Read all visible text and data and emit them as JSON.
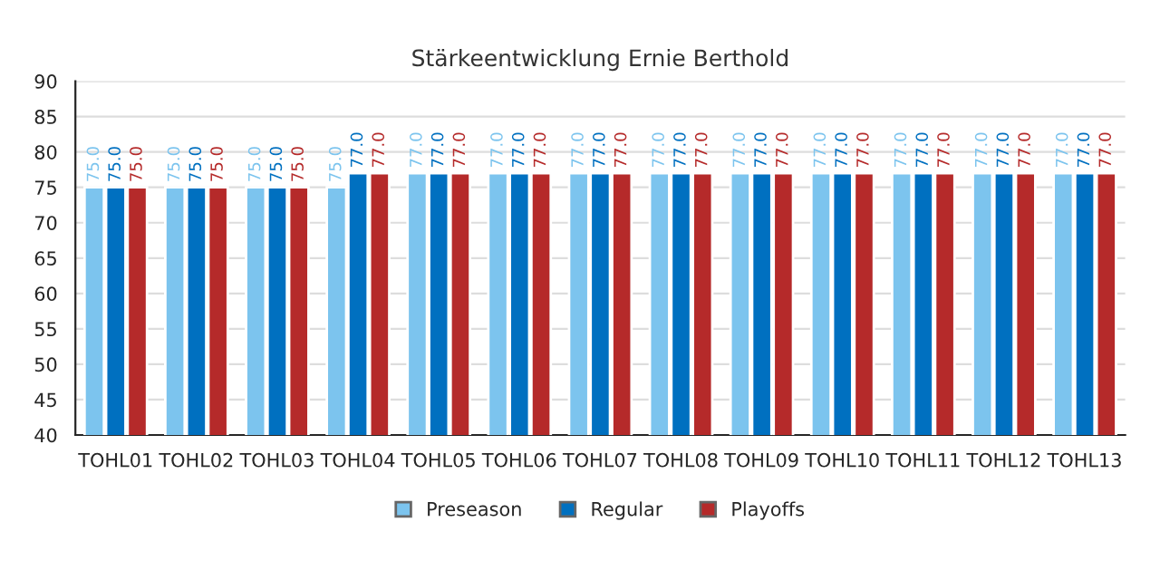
{
  "chart_data": {
    "type": "bar",
    "title": "Stärkeentwicklung Ernie Berthold",
    "categories": [
      "TOHL01",
      "TOHL02",
      "TOHL03",
      "TOHL04",
      "TOHL05",
      "TOHL06",
      "TOHL07",
      "TOHL08",
      "TOHL09",
      "TOHL10",
      "TOHL11",
      "TOHL12",
      "TOHL13"
    ],
    "series": [
      {
        "name": "Preseason",
        "color": "#7cc4ee",
        "values": [
          75,
          75,
          75,
          75,
          77,
          77,
          77,
          77,
          77,
          77,
          77,
          77,
          77
        ],
        "value_labels": [
          "75.0",
          "75.0",
          "75.0",
          "75.0",
          "77.0",
          "77.0",
          "77.0",
          "77.0",
          "77.0",
          "77.0",
          "77.0",
          "77.0",
          "77.0"
        ]
      },
      {
        "name": "Regular",
        "color": "#0070c0",
        "values": [
          75,
          75,
          75,
          77,
          77,
          77,
          77,
          77,
          77,
          77,
          77,
          77,
          77
        ],
        "value_labels": [
          "75.0",
          "75.0",
          "75.0",
          "77.0",
          "77.0",
          "77.0",
          "77.0",
          "77.0",
          "77.0",
          "77.0",
          "77.0",
          "77.0",
          "77.0"
        ]
      },
      {
        "name": "Playoffs",
        "color": "#b52a2a",
        "values": [
          75,
          75,
          75,
          77,
          77,
          77,
          77,
          77,
          77,
          77,
          77,
          77,
          77
        ],
        "value_labels": [
          "75.0",
          "75.0",
          "75.0",
          "77.0",
          "77.0",
          "77.0",
          "77.0",
          "77.0",
          "77.0",
          "77.0",
          "77.0",
          "77.0",
          "77.0"
        ]
      }
    ],
    "ylim": [
      40,
      90
    ],
    "yticks": [
      40,
      45,
      50,
      55,
      60,
      65,
      70,
      75,
      80,
      85,
      90
    ],
    "grid": "y",
    "legend": "bottom"
  }
}
